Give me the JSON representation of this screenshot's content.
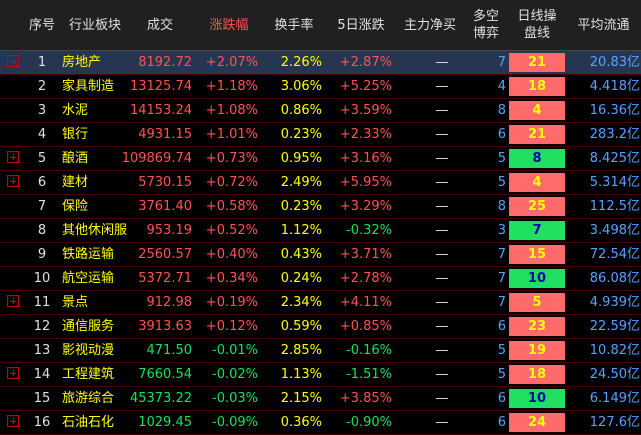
{
  "headers": [
    "序号",
    "行业板块",
    "成交",
    "涨跌幅",
    "换手率",
    "5日涨跌",
    "主力净买",
    "多空\n博弈",
    "日线操\n盘线",
    "平均流通"
  ],
  "colors": {
    "up": "#ff5252",
    "down": "#19e05a",
    "name": "#ffff00",
    "day_red": "#ff6b6b",
    "day_green": "#1fe060"
  },
  "rows": [
    {
      "idx": "1",
      "name": "房地产",
      "vol": "8192.72",
      "chg": "+2.07%",
      "turn": "2.26%",
      "d5": "+2.87%",
      "net": "—",
      "ls": "7",
      "day": "21",
      "day_color": "red",
      "flow": "20.83亿",
      "expand": true,
      "selected": true,
      "vol_dir": "up",
      "chg_dir": "up",
      "d5_dir": "up"
    },
    {
      "idx": "2",
      "name": "家具制造",
      "vol": "13125.74",
      "chg": "+1.18%",
      "turn": "3.06%",
      "d5": "+5.25%",
      "net": "—",
      "ls": "4",
      "day": "18",
      "day_color": "red",
      "flow": "4.418亿",
      "expand": false,
      "selected": false,
      "vol_dir": "up",
      "chg_dir": "up",
      "d5_dir": "up"
    },
    {
      "idx": "3",
      "name": "水泥",
      "vol": "14153.24",
      "chg": "+1.08%",
      "turn": "0.86%",
      "d5": "+3.59%",
      "net": "—",
      "ls": "8",
      "day": "4",
      "day_color": "red",
      "flow": "16.36亿",
      "expand": false,
      "selected": false,
      "vol_dir": "up",
      "chg_dir": "up",
      "d5_dir": "up"
    },
    {
      "idx": "4",
      "name": "银行",
      "vol": "4931.15",
      "chg": "+1.01%",
      "turn": "0.23%",
      "d5": "+2.33%",
      "net": "—",
      "ls": "6",
      "day": "21",
      "day_color": "red",
      "flow": "283.2亿",
      "expand": false,
      "selected": false,
      "vol_dir": "up",
      "chg_dir": "up",
      "d5_dir": "up"
    },
    {
      "idx": "5",
      "name": "酿酒",
      "vol": "109869.74",
      "chg": "+0.73%",
      "turn": "0.95%",
      "d5": "+3.16%",
      "net": "—",
      "ls": "5",
      "day": "8",
      "day_color": "green",
      "flow": "8.425亿",
      "expand": true,
      "selected": false,
      "vol_dir": "up",
      "chg_dir": "up",
      "d5_dir": "up"
    },
    {
      "idx": "6",
      "name": "建材",
      "vol": "5730.15",
      "chg": "+0.72%",
      "turn": "2.49%",
      "d5": "+5.95%",
      "net": "—",
      "ls": "5",
      "day": "4",
      "day_color": "red",
      "flow": "5.314亿",
      "expand": true,
      "selected": false,
      "vol_dir": "up",
      "chg_dir": "up",
      "d5_dir": "up"
    },
    {
      "idx": "7",
      "name": "保险",
      "vol": "3761.40",
      "chg": "+0.58%",
      "turn": "0.23%",
      "d5": "+3.29%",
      "net": "—",
      "ls": "8",
      "day": "25",
      "day_color": "red",
      "flow": "112.5亿",
      "expand": false,
      "selected": false,
      "vol_dir": "up",
      "chg_dir": "up",
      "d5_dir": "up"
    },
    {
      "idx": "8",
      "name": "其他休闲服",
      "vol": "953.19",
      "chg": "+0.52%",
      "turn": "1.12%",
      "d5": "-0.32%",
      "net": "—",
      "ls": "3",
      "day": "7",
      "day_color": "green",
      "flow": "3.498亿",
      "expand": false,
      "selected": false,
      "vol_dir": "up",
      "chg_dir": "up",
      "d5_dir": "down"
    },
    {
      "idx": "9",
      "name": "铁路运输",
      "vol": "2560.57",
      "chg": "+0.40%",
      "turn": "0.43%",
      "d5": "+3.71%",
      "net": "—",
      "ls": "7",
      "day": "15",
      "day_color": "red",
      "flow": "72.54亿",
      "expand": false,
      "selected": false,
      "vol_dir": "up",
      "chg_dir": "up",
      "d5_dir": "up"
    },
    {
      "idx": "10",
      "name": "航空运输",
      "vol": "5372.71",
      "chg": "+0.34%",
      "turn": "0.24%",
      "d5": "+2.78%",
      "net": "—",
      "ls": "7",
      "day": "10",
      "day_color": "green",
      "flow": "86.08亿",
      "expand": false,
      "selected": false,
      "vol_dir": "up",
      "chg_dir": "up",
      "d5_dir": "up"
    },
    {
      "idx": "11",
      "name": "景点",
      "vol": "912.98",
      "chg": "+0.19%",
      "turn": "2.34%",
      "d5": "+4.11%",
      "net": "—",
      "ls": "7",
      "day": "5",
      "day_color": "red",
      "flow": "4.939亿",
      "expand": true,
      "selected": false,
      "vol_dir": "up",
      "chg_dir": "up",
      "d5_dir": "up"
    },
    {
      "idx": "12",
      "name": "通信服务",
      "vol": "3913.63",
      "chg": "+0.12%",
      "turn": "0.59%",
      "d5": "+0.85%",
      "net": "—",
      "ls": "6",
      "day": "23",
      "day_color": "red",
      "flow": "22.59亿",
      "expand": false,
      "selected": false,
      "vol_dir": "up",
      "chg_dir": "up",
      "d5_dir": "up"
    },
    {
      "idx": "13",
      "name": "影视动漫",
      "vol": "471.50",
      "chg": "-0.01%",
      "turn": "2.85%",
      "d5": "-0.16%",
      "net": "—",
      "ls": "5",
      "day": "19",
      "day_color": "red",
      "flow": "10.82亿",
      "expand": false,
      "selected": false,
      "vol_dir": "down",
      "chg_dir": "down",
      "d5_dir": "down"
    },
    {
      "idx": "14",
      "name": "工程建筑",
      "vol": "7660.54",
      "chg": "-0.02%",
      "turn": "1.13%",
      "d5": "-1.51%",
      "net": "—",
      "ls": "5",
      "day": "18",
      "day_color": "red",
      "flow": "24.50亿",
      "expand": true,
      "selected": false,
      "vol_dir": "down",
      "chg_dir": "down",
      "d5_dir": "down"
    },
    {
      "idx": "15",
      "name": "旅游综合",
      "vol": "45373.22",
      "chg": "-0.03%",
      "turn": "2.15%",
      "d5": "+3.85%",
      "net": "—",
      "ls": "6",
      "day": "10",
      "day_color": "green",
      "flow": "6.149亿",
      "expand": false,
      "selected": false,
      "vol_dir": "down",
      "chg_dir": "down",
      "d5_dir": "up"
    },
    {
      "idx": "16",
      "name": "石油石化",
      "vol": "1029.45",
      "chg": "-0.09%",
      "turn": "0.36%",
      "d5": "-0.90%",
      "net": "—",
      "ls": "6",
      "day": "24",
      "day_color": "red",
      "flow": "127.6亿",
      "expand": true,
      "selected": false,
      "vol_dir": "down",
      "chg_dir": "down",
      "d5_dir": "down"
    }
  ]
}
